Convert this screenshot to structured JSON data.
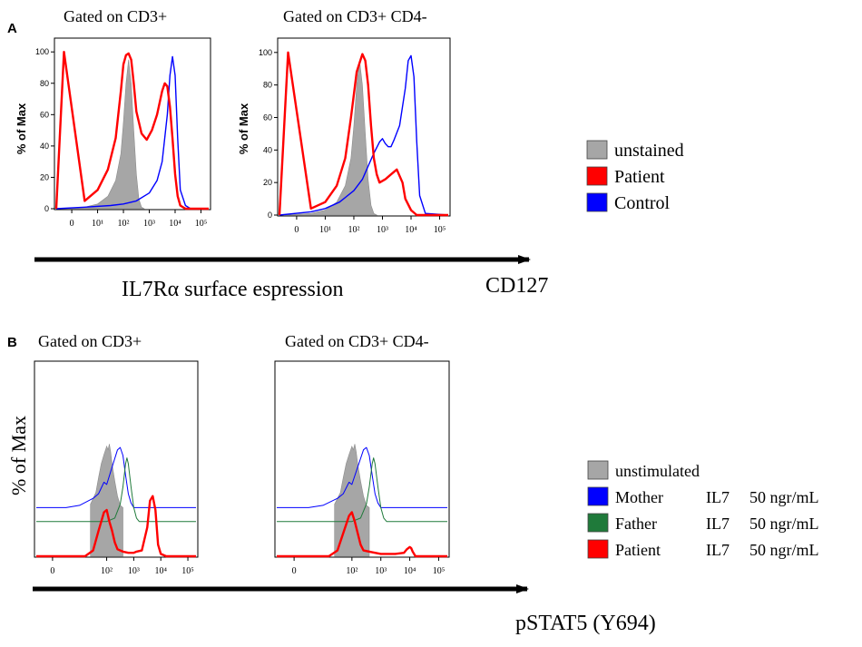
{
  "figure": {
    "panel_a_label": "A",
    "panel_b_label": "B",
    "panel_a_axis_title": "IL7Rα surface espression",
    "panel_a_marker": "CD127",
    "panel_b_axis_title": "pSTAT5  (Y694)",
    "panel_b_ylabel": "% of Max"
  },
  "legend_a": [
    {
      "label": "unstained",
      "color": "#a6a6a6"
    },
    {
      "label": "Patient",
      "color": "#ff0000"
    },
    {
      "label": "Control",
      "color": "#0000ff"
    }
  ],
  "legend_b": [
    {
      "label": "unstimulated",
      "cytokine": "",
      "dose": "",
      "color": "#a6a6a6"
    },
    {
      "label": "Mother",
      "cytokine": "IL7",
      "dose": "50 ngr/mL",
      "color": "#0000ff"
    },
    {
      "label": "Father",
      "cytokine": "IL7",
      "dose": "50 ngr/mL",
      "color": "#1f7a3a"
    },
    {
      "label": "Patient",
      "cytokine": "IL7",
      "dose": "50 ngr/mL",
      "color": "#ff0000"
    }
  ],
  "chart_data": [
    {
      "id": "a1",
      "type": "line",
      "title": "Gated on CD3+",
      "ylabel": "% of Max",
      "xscale": "biexponential",
      "xlim": [
        -0.6,
        5.3
      ],
      "ylim": [
        0,
        105
      ],
      "yticks": [
        "0",
        "20",
        "40",
        "60",
        "80",
        "100"
      ],
      "xticks": [
        "0",
        "10¹",
        "10²",
        "10³",
        "10⁴",
        "10⁵"
      ],
      "series": [
        {
          "name": "unstained",
          "style": "fill",
          "color": "#a6a6a6",
          "x": [
            -0.4,
            0.5,
            1.0,
            1.4,
            1.7,
            1.9,
            2.0,
            2.1,
            2.2,
            2.3,
            2.4,
            2.5,
            2.6,
            2.7,
            2.8
          ],
          "y": [
            0,
            1,
            3,
            8,
            18,
            35,
            55,
            80,
            95,
            80,
            50,
            22,
            6,
            1,
            0
          ]
        },
        {
          "name": "Control",
          "style": "line",
          "color": "#0000ff",
          "x": [
            -0.6,
            0.5,
            1.5,
            2.0,
            2.5,
            3.0,
            3.3,
            3.5,
            3.7,
            3.8,
            3.9,
            4.0,
            4.1,
            4.2,
            4.4,
            4.6,
            5.3
          ],
          "y": [
            0,
            1,
            2,
            3,
            5,
            10,
            18,
            30,
            60,
            85,
            97,
            85,
            45,
            12,
            2,
            0,
            0
          ]
        },
        {
          "name": "Patient",
          "style": "line",
          "color": "#ff0000",
          "x": [
            -0.6,
            -0.3,
            0.5,
            1.0,
            1.4,
            1.7,
            1.9,
            2.0,
            2.1,
            2.2,
            2.3,
            2.4,
            2.5,
            2.7,
            2.9,
            3.1,
            3.3,
            3.5,
            3.6,
            3.7,
            3.8,
            3.9,
            4.0,
            4.1,
            4.2,
            4.4,
            5.0,
            5.3
          ],
          "y": [
            0,
            100,
            5,
            12,
            25,
            45,
            75,
            92,
            98,
            99,
            95,
            80,
            62,
            48,
            44,
            50,
            60,
            75,
            80,
            78,
            65,
            45,
            22,
            8,
            2,
            0,
            0,
            0
          ]
        }
      ]
    },
    {
      "id": "a2",
      "type": "line",
      "title": "Gated on CD3+ CD4-",
      "ylabel": "% of Max",
      "xscale": "biexponential",
      "xlim": [
        -0.6,
        5.3
      ],
      "ylim": [
        0,
        105
      ],
      "yticks": [
        "0",
        "20",
        "40",
        "60",
        "80",
        "100"
      ],
      "xticks": [
        "0",
        "10¹",
        "10²",
        "10³",
        "10⁴",
        "10⁵"
      ],
      "series": [
        {
          "name": "unstained",
          "style": "fill",
          "color": "#a6a6a6",
          "x": [
            -0.4,
            0.5,
            1.0,
            1.4,
            1.7,
            1.9,
            2.0,
            2.1,
            2.2,
            2.3,
            2.4,
            2.5,
            2.6,
            2.7,
            2.8
          ],
          "y": [
            0,
            1,
            3,
            8,
            18,
            35,
            55,
            80,
            95,
            80,
            50,
            22,
            6,
            1,
            0
          ]
        },
        {
          "name": "Control",
          "style": "line",
          "color": "#0000ff",
          "x": [
            -0.6,
            0.5,
            1.0,
            1.5,
            2.0,
            2.3,
            2.5,
            2.7,
            2.9,
            3.0,
            3.1,
            3.2,
            3.3,
            3.4,
            3.6,
            3.8,
            3.9,
            4.0,
            4.1,
            4.2,
            4.3,
            4.5,
            5.3
          ],
          "y": [
            0,
            2,
            4,
            8,
            15,
            22,
            30,
            38,
            45,
            47,
            44,
            42,
            42,
            46,
            55,
            78,
            95,
            98,
            85,
            45,
            12,
            1,
            0
          ]
        },
        {
          "name": "Patient",
          "style": "line",
          "color": "#ff0000",
          "x": [
            -0.6,
            -0.3,
            0.5,
            1.0,
            1.4,
            1.7,
            1.9,
            2.1,
            2.3,
            2.4,
            2.5,
            2.6,
            2.7,
            2.8,
            2.9,
            3.1,
            3.3,
            3.5,
            3.7,
            3.8,
            4.0,
            4.2,
            5.3
          ],
          "y": [
            0,
            100,
            4,
            8,
            18,
            35,
            60,
            88,
            99,
            95,
            80,
            55,
            35,
            25,
            20,
            22,
            25,
            28,
            20,
            10,
            3,
            0,
            0
          ]
        }
      ]
    },
    {
      "id": "b1",
      "type": "line",
      "title": "Gated on CD3+",
      "ylabel": "% of Max",
      "xscale": "biexponential",
      "xlim": [
        -0.6,
        5.3
      ],
      "ylim": [
        0,
        105
      ],
      "yticks": [],
      "xticks": [
        "0",
        "10²",
        "10³",
        "10⁴",
        "10⁵"
      ],
      "tick_positions": [
        0,
        2,
        3,
        4,
        5
      ],
      "series": [
        {
          "name": "unstimulated",
          "style": "fill",
          "color": "#a6a6a6",
          "x": [
            1.4,
            1.6,
            1.7,
            1.8,
            1.9,
            2.0,
            2.05,
            2.1,
            2.15,
            2.2,
            2.3,
            2.4,
            2.5,
            2.6
          ],
          "y": [
            45,
            55,
            68,
            80,
            88,
            95,
            92,
            97,
            90,
            80,
            65,
            52,
            44,
            42
          ]
        },
        {
          "name": "Mother",
          "style": "line",
          "color": "#0000ff",
          "offset": 42,
          "x": [
            -0.6,
            0.5,
            1.0,
            1.5,
            1.7,
            1.9,
            2.0,
            2.2,
            2.4,
            2.5,
            2.6,
            2.7,
            2.8,
            2.9,
            3.0,
            5.3
          ],
          "y": [
            0,
            0,
            2,
            8,
            12,
            22,
            20,
            35,
            50,
            52,
            45,
            28,
            12,
            4,
            0,
            0
          ]
        },
        {
          "name": "Father",
          "style": "line",
          "color": "#1f7a3a",
          "offset": 30,
          "x": [
            -0.6,
            1.0,
            2.0,
            2.3,
            2.5,
            2.6,
            2.7,
            2.75,
            2.8,
            2.9,
            3.0,
            3.1,
            3.2,
            5.3
          ],
          "y": [
            0,
            0,
            0,
            3,
            15,
            30,
            50,
            55,
            50,
            30,
            12,
            3,
            0,
            0
          ]
        },
        {
          "name": "Patient",
          "style": "line",
          "color": "#ff0000",
          "offset": 0,
          "x": [
            -0.6,
            1.2,
            1.5,
            1.7,
            1.9,
            2.0,
            2.1,
            2.2,
            2.3,
            2.4,
            2.6,
            2.8,
            3.0,
            3.1,
            3.3,
            3.5,
            3.6,
            3.7,
            3.8,
            3.9,
            4.0,
            4.2,
            4.3,
            5.3
          ],
          "y": [
            0,
            0,
            5,
            22,
            38,
            40,
            30,
            22,
            12,
            6,
            4,
            3,
            3,
            4,
            5,
            25,
            48,
            52,
            40,
            10,
            2,
            0,
            0,
            0
          ]
        }
      ]
    },
    {
      "id": "b2",
      "type": "line",
      "title": "Gated on CD3+ CD4-",
      "ylabel": "% of Max",
      "xscale": "biexponential",
      "xlim": [
        -0.6,
        5.3
      ],
      "ylim": [
        0,
        105
      ],
      "yticks": [],
      "xticks": [
        "0",
        "10²",
        "10³",
        "10⁴",
        "10⁵"
      ],
      "tick_positions": [
        0,
        2,
        3,
        4,
        5
      ],
      "series": [
        {
          "name": "unstimulated",
          "style": "fill",
          "color": "#a6a6a6",
          "x": [
            1.4,
            1.6,
            1.7,
            1.8,
            1.9,
            2.0,
            2.05,
            2.1,
            2.15,
            2.2,
            2.3,
            2.4,
            2.5,
            2.6
          ],
          "y": [
            45,
            55,
            68,
            80,
            88,
            95,
            92,
            97,
            90,
            80,
            65,
            52,
            44,
            42
          ]
        },
        {
          "name": "Mother",
          "style": "line",
          "color": "#0000ff",
          "offset": 42,
          "x": [
            -0.6,
            0.5,
            1.0,
            1.5,
            1.7,
            1.9,
            2.0,
            2.2,
            2.4,
            2.5,
            2.6,
            2.7,
            2.8,
            2.9,
            3.0,
            5.3
          ],
          "y": [
            0,
            0,
            2,
            8,
            12,
            22,
            20,
            35,
            50,
            52,
            45,
            28,
            12,
            4,
            0,
            0
          ]
        },
        {
          "name": "Father",
          "style": "line",
          "color": "#1f7a3a",
          "offset": 30,
          "x": [
            -0.6,
            1.0,
            2.0,
            2.3,
            2.5,
            2.6,
            2.7,
            2.75,
            2.8,
            2.9,
            3.0,
            3.1,
            3.2,
            5.3
          ],
          "y": [
            0,
            0,
            0,
            3,
            15,
            30,
            50,
            55,
            50,
            30,
            12,
            3,
            0,
            0
          ]
        },
        {
          "name": "Patient",
          "style": "line",
          "color": "#ff0000",
          "offset": 0,
          "x": [
            -0.6,
            1.2,
            1.5,
            1.7,
            1.9,
            2.0,
            2.1,
            2.2,
            2.3,
            2.4,
            2.6,
            2.8,
            3.0,
            3.2,
            3.5,
            3.8,
            3.9,
            4.0,
            4.05,
            4.1,
            4.2,
            4.3,
            5.3
          ],
          "y": [
            0,
            0,
            5,
            20,
            35,
            38,
            30,
            20,
            10,
            5,
            4,
            3,
            2,
            2,
            2,
            3,
            6,
            8,
            7,
            4,
            0,
            0,
            0
          ]
        }
      ]
    }
  ]
}
